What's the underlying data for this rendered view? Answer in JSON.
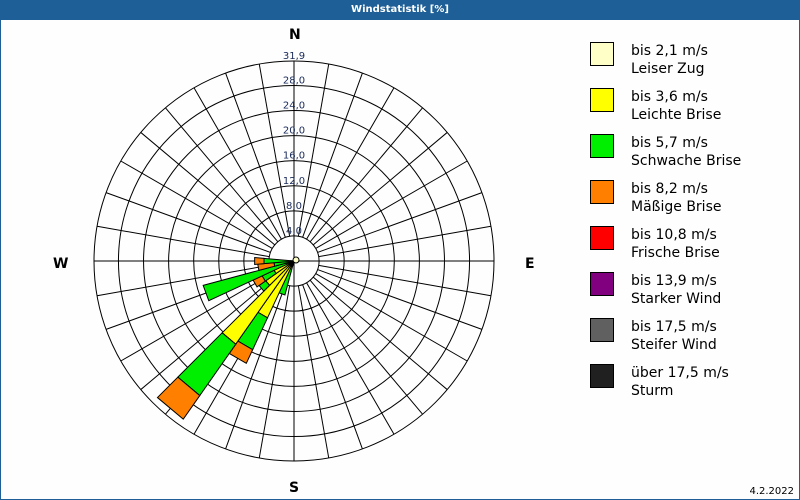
{
  "window": {
    "title": "Windstatistik [%]"
  },
  "compass": {
    "n": "N",
    "e": "E",
    "s": "S",
    "w": "W"
  },
  "footer": {
    "date": "4.2.2022"
  },
  "legend": [
    {
      "range": "bis 2,1 m/s",
      "name": "Leiser Zug",
      "color": "#ffffc8"
    },
    {
      "range": "bis 3,6 m/s",
      "name": "Leichte Brise",
      "color": "#ffff00"
    },
    {
      "range": "bis 5,7 m/s",
      "name": "Schwache Brise",
      "color": "#00ee00"
    },
    {
      "range": "bis 8,2 m/s",
      "name": "Mäßige Brise",
      "color": "#ff8000"
    },
    {
      "range": "bis 10,8 m/s",
      "name": "Frische Brise",
      "color": "#ff0000"
    },
    {
      "range": "bis 13,9 m/s",
      "name": "Starker Wind",
      "color": "#800080"
    },
    {
      "range": "bis 17,5 m/s",
      "name": "Steifer Wind",
      "color": "#606060"
    },
    {
      "range": "über 17,5 m/s",
      "name": "Sturm",
      "color": "#202020"
    }
  ],
  "chart_data": {
    "type": "wind-rose",
    "title": "Windstatistik [%]",
    "unit": "%",
    "rmax": 31.9,
    "ring_ticks": [
      4.0,
      8.0,
      12.0,
      16.0,
      20.0,
      24.0,
      28.0,
      31.9
    ],
    "ring_labels": [
      "4,0",
      "8,0",
      "12,0",
      "16,0",
      "20,0",
      "24,0",
      "28,0",
      "31,9"
    ],
    "sector_deg": 10,
    "classes": [
      "bis 2,1 m/s",
      "bis 3,6 m/s",
      "bis 5,7 m/s",
      "bis 8,2 m/s",
      "bis 10,8 m/s",
      "bis 13,9 m/s",
      "bis 17,5 m/s",
      "über 17,5 m/s"
    ],
    "series": [
      {
        "direction": 200,
        "cumulative": [
          0.3,
          0.8,
          5.6,
          5.6
        ]
      },
      {
        "direction": 210,
        "cumulative": [
          0.3,
          10.0,
          15.6,
          18.0
        ]
      },
      {
        "direction": 220,
        "cumulative": [
          0.3,
          16.2,
          26.2,
          30.8
        ]
      },
      {
        "direction": 230,
        "cumulative": [
          0.3,
          5.5,
          6.8,
          6.8
        ]
      },
      {
        "direction": 240,
        "cumulative": [
          0.3,
          3.5,
          5.6,
          7.2
        ]
      },
      {
        "direction": 250,
        "cumulative": [
          0.3,
          1.2,
          15.0,
          15.0
        ]
      },
      {
        "direction": 260,
        "cumulative": [
          0.3,
          0.6,
          3.2,
          5.8
        ]
      },
      {
        "direction": 270,
        "cumulative": [
          0.3,
          0.5,
          4.8,
          6.3
        ]
      }
    ]
  }
}
